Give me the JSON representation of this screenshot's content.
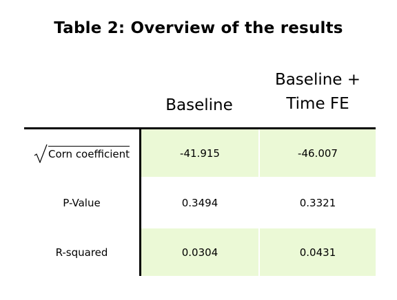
{
  "title": "Table 2: Overview of the results",
  "columns": [
    {
      "label": "Baseline"
    },
    {
      "label_line1": "Baseline +",
      "label_line2": "Time FE"
    }
  ],
  "rows": [
    {
      "label": "Corn coefficient",
      "sqrt": true,
      "values": [
        "-41.915",
        "-46.007"
      ],
      "shaded": true
    },
    {
      "label": "P-Value",
      "values": [
        "0.3494",
        "0.3321"
      ],
      "shaded": false
    },
    {
      "label": "R-squared",
      "values": [
        "0.0304",
        "0.0431"
      ],
      "shaded": true
    }
  ],
  "colors": {
    "shade": "#ebf9d6",
    "rule": "#000000"
  },
  "icons": [
    "sqrt-icon"
  ]
}
